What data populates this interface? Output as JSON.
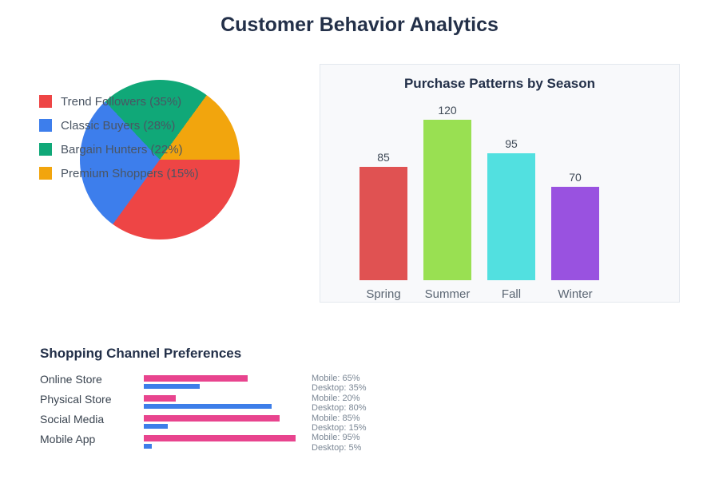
{
  "page": {
    "title": "Customer Behavior Analytics"
  },
  "chart_data": [
    {
      "type": "pie",
      "name": "customer-segments",
      "slices": [
        {
          "label": "Trend Followers",
          "pct": 35,
          "color": "#EE4545"
        },
        {
          "label": "Classic Buyers",
          "pct": 28,
          "color": "#3D7EEC"
        },
        {
          "label": "Bargain Hunters",
          "pct": 22,
          "color": "#10A878"
        },
        {
          "label": "Premium Shoppers",
          "pct": 15,
          "color": "#F2A50D"
        }
      ],
      "start_angle_deg": 90,
      "direction": "clockwise",
      "legend_position": "left-overlay",
      "legend_format": "{label} ({pct}%)"
    },
    {
      "type": "bar",
      "title": "Purchase Patterns by Season",
      "categories": [
        "Spring",
        "Summer",
        "Fall",
        "Winter"
      ],
      "values": [
        85,
        120,
        95,
        70
      ],
      "bar_colors": [
        "#E05252",
        "#99E052",
        "#52E0E0",
        "#9952E0"
      ],
      "value_labels_shown": true,
      "axes": "hidden",
      "grid": "off",
      "ylim": [
        0,
        125
      ],
      "panel_bg": "#F8F9FB",
      "panel_border": "#E3E8EE"
    },
    {
      "type": "horizontal-grouped-bar",
      "title": "Shopping Channel Preferences",
      "categories": [
        "Online Store",
        "Physical Store",
        "Social Media",
        "Mobile App"
      ],
      "series": [
        {
          "name": "Mobile",
          "color": "#E8448E",
          "values": [
            65,
            20,
            85,
            95
          ]
        },
        {
          "name": "Desktop",
          "color": "#3D7EE9",
          "values": [
            35,
            80,
            15,
            5
          ]
        }
      ],
      "annotation_format": "{name}: {value}%",
      "xlim": [
        0,
        100
      ]
    }
  ],
  "text_colors": {
    "heading": "#233049",
    "legend": "#4A5563",
    "category": "#5A6572",
    "value_label": "#3F4A57",
    "row_label": "#3A4450",
    "annotation": "#7B8795"
  }
}
